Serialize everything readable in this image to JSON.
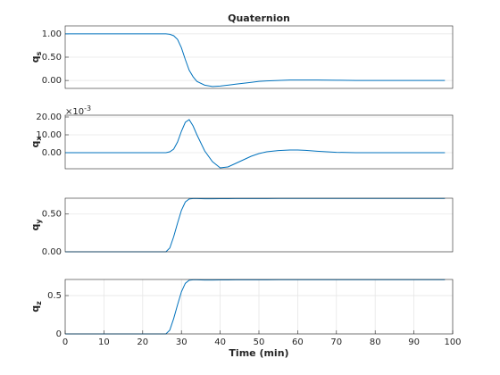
{
  "chart_data": [
    {
      "type": "line",
      "title": "Quaternion",
      "ylabel": "q",
      "ylabel_sub": "s",
      "x": [
        0,
        5,
        10,
        15,
        20,
        24,
        26,
        27,
        28,
        29,
        30,
        31,
        32,
        33,
        34,
        36,
        38,
        40,
        42,
        44,
        46,
        48,
        50,
        52,
        55,
        58,
        60,
        62,
        65,
        70,
        75,
        80,
        85,
        90,
        95,
        98
      ],
      "values": [
        1,
        1,
        1,
        1,
        1,
        1,
        1,
        0.99,
        0.96,
        0.88,
        0.7,
        0.45,
        0.22,
        0.08,
        -0.02,
        -0.1,
        -0.13,
        -0.12,
        -0.1,
        -0.08,
        -0.06,
        -0.04,
        -0.02,
        -0.01,
        0,
        0.01,
        0.01,
        0.01,
        0.01,
        0.005,
        0,
        0,
        0,
        0,
        0,
        0
      ],
      "color": "#0072bd",
      "xlim": [
        0,
        100
      ],
      "ylim": [
        -0.17,
        1.17
      ],
      "yticks": [
        {
          "value": 0,
          "label": "0.00"
        },
        {
          "value": 0.5,
          "label": "0.50"
        },
        {
          "value": 1,
          "label": "1.00"
        }
      ],
      "grid": "y"
    },
    {
      "type": "line",
      "ylabel": "q",
      "ylabel_sub": "x",
      "y_exponent_base": "×10",
      "y_exponent": "-3",
      "x": [
        0,
        5,
        10,
        15,
        20,
        24,
        26,
        27,
        28,
        29,
        30,
        31,
        32,
        33,
        34,
        36,
        38,
        40,
        42,
        44,
        46,
        48,
        50,
        52,
        55,
        58,
        60,
        62,
        65,
        70,
        75,
        80,
        85,
        90,
        95,
        98
      ],
      "values": [
        0,
        0,
        0,
        0,
        0,
        0,
        0,
        0.5,
        2,
        6,
        12,
        17,
        18.5,
        15,
        10,
        1,
        -5,
        -8.5,
        -8,
        -6,
        -4,
        -2,
        -0.5,
        0.5,
        1.2,
        1.5,
        1.5,
        1.3,
        0.8,
        0.2,
        0,
        0,
        0,
        0,
        0,
        0
      ],
      "color": "#0072bd",
      "xlim": [
        0,
        100
      ],
      "ylim": [
        -9,
        21
      ],
      "yticks": [
        {
          "value": 0,
          "label": "0.00"
        },
        {
          "value": 10,
          "label": "10.00"
        },
        {
          "value": 20,
          "label": "20.00"
        }
      ],
      "grid": "y"
    },
    {
      "type": "line",
      "ylabel": "q",
      "ylabel_sub": "y",
      "x": [
        0,
        5,
        10,
        15,
        20,
        24,
        26,
        27,
        28,
        29,
        30,
        31,
        32,
        33,
        34,
        36,
        38,
        40,
        42,
        44,
        46,
        48,
        50,
        52,
        55,
        58,
        60,
        62,
        65,
        70,
        75,
        80,
        85,
        90,
        95,
        98
      ],
      "values": [
        0,
        0,
        0,
        0,
        0,
        0,
        0,
        0.05,
        0.2,
        0.38,
        0.55,
        0.66,
        0.7,
        0.705,
        0.705,
        0.703,
        0.703,
        0.704,
        0.704,
        0.705,
        0.705,
        0.706,
        0.706,
        0.706,
        0.707,
        0.707,
        0.707,
        0.707,
        0.707,
        0.707,
        0.707,
        0.707,
        0.707,
        0.707,
        0.707,
        0.707
      ],
      "color": "#0072bd",
      "xlim": [
        0,
        100
      ],
      "ylim": [
        0,
        0.71
      ],
      "yticks": [
        {
          "value": 0,
          "label": "0.00"
        },
        {
          "value": 0.5,
          "label": "0.50"
        }
      ],
      "grid": "y"
    },
    {
      "type": "line",
      "ylabel": "q",
      "ylabel_sub": "z",
      "xlabel": "Time (min)",
      "x": [
        0,
        5,
        10,
        15,
        20,
        24,
        26,
        27,
        28,
        29,
        30,
        31,
        32,
        33,
        34,
        36,
        38,
        40,
        42,
        44,
        46,
        48,
        50,
        52,
        55,
        58,
        60,
        62,
        65,
        70,
        75,
        80,
        85,
        90,
        95,
        98
      ],
      "values": [
        0,
        0,
        0,
        0,
        0,
        0,
        0,
        0.05,
        0.2,
        0.38,
        0.55,
        0.66,
        0.7,
        0.705,
        0.705,
        0.703,
        0.703,
        0.704,
        0.704,
        0.705,
        0.705,
        0.706,
        0.706,
        0.706,
        0.707,
        0.707,
        0.707,
        0.707,
        0.707,
        0.707,
        0.707,
        0.707,
        0.707,
        0.707,
        0.707,
        0.707
      ],
      "color": "#0072bd",
      "xlim": [
        0,
        100
      ],
      "ylim": [
        0,
        0.71
      ],
      "xticks": [
        0,
        10,
        20,
        30,
        40,
        50,
        60,
        70,
        80,
        90,
        100
      ],
      "yticks": [
        0,
        0.5
      ],
      "grid": "both"
    }
  ]
}
